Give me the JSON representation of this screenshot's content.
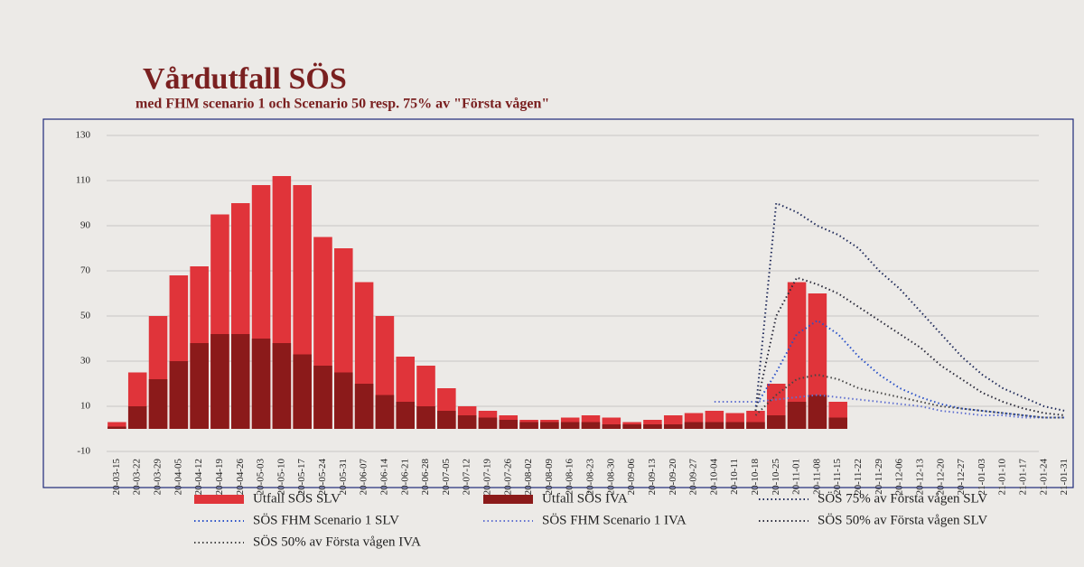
{
  "chart_data": {
    "type": "bar",
    "title": "Vårdutfall SÖS",
    "subtitle": "med FHM scenario 1 och Scenario 50 resp. 75% av \"Första vågen\"",
    "categories": [
      "20-03-15",
      "20-03-22",
      "20-03-29",
      "20-04-05",
      "20-04-12",
      "20-04-19",
      "20-04-26",
      "20-05-03",
      "20-05-10",
      "20-05-17",
      "20-05-24",
      "20-05-31",
      "20-06-07",
      "20-06-14",
      "20-06-21",
      "20-06-28",
      "20-07-05",
      "20-07-12",
      "20-07-19",
      "20-07-26",
      "20-08-02",
      "20-08-09",
      "20-08-16",
      "20-08-23",
      "20-08-30",
      "20-09-06",
      "20-09-13",
      "20-09-20",
      "20-09-27",
      "20-10-04",
      "20-10-11",
      "20-10-18",
      "20-10-25",
      "20-11-01",
      "20-11-08",
      "20-11-15",
      "20-11-22",
      "20-11-29",
      "20-12-06",
      "20-12-13",
      "20-12-20",
      "20-12-27",
      "21-01-03",
      "21-01-10",
      "21-01-17",
      "21-01-24",
      "21-01-31"
    ],
    "ylim": [
      -10,
      130
    ],
    "yticks": [
      -10,
      10,
      30,
      50,
      70,
      90,
      110,
      130
    ],
    "grid": true,
    "series": [
      {
        "name": "Utfall SÖS SLV",
        "kind": "bar",
        "color": "#e0343a",
        "values": [
          3,
          25,
          50,
          68,
          72,
          95,
          100,
          108,
          112,
          108,
          85,
          80,
          65,
          50,
          32,
          28,
          18,
          10,
          8,
          6,
          4,
          4,
          5,
          6,
          5,
          3,
          4,
          6,
          7,
          8,
          7,
          8,
          20,
          65,
          60,
          12,
          null,
          null,
          null,
          null,
          null,
          null,
          null,
          null,
          null,
          null,
          null
        ]
      },
      {
        "name": "Utfall SÖS IVA",
        "kind": "bar",
        "color": "#8b1a1a",
        "values": [
          1,
          10,
          22,
          30,
          38,
          42,
          42,
          40,
          38,
          33,
          28,
          25,
          20,
          15,
          12,
          10,
          8,
          6,
          5,
          4,
          3,
          3,
          3,
          3,
          2,
          2,
          2,
          2,
          3,
          3,
          3,
          3,
          6,
          12,
          15,
          5,
          null,
          null,
          null,
          null,
          null,
          null,
          null,
          null,
          null,
          null,
          null
        ]
      },
      {
        "name": "SÖS  75% av Första vågen SLV",
        "kind": "line",
        "color": "#1f2a5a",
        "values": [
          null,
          null,
          null,
          null,
          null,
          null,
          null,
          null,
          null,
          null,
          null,
          null,
          null,
          null,
          null,
          null,
          null,
          null,
          null,
          null,
          null,
          null,
          null,
          null,
          null,
          null,
          null,
          null,
          null,
          null,
          null,
          8,
          100,
          96,
          90,
          86,
          80,
          70,
          62,
          52,
          42,
          32,
          24,
          18,
          14,
          10,
          8
        ]
      },
      {
        "name": "SÖS FHM Scenario 1 SLV",
        "kind": "line",
        "color": "#2850c8",
        "values": [
          null,
          null,
          null,
          null,
          null,
          null,
          null,
          null,
          null,
          null,
          null,
          null,
          null,
          null,
          null,
          null,
          null,
          null,
          null,
          null,
          null,
          null,
          null,
          null,
          null,
          null,
          null,
          null,
          null,
          null,
          null,
          10,
          25,
          42,
          48,
          42,
          32,
          24,
          18,
          14,
          11,
          9,
          8,
          7,
          6,
          5,
          5
        ]
      },
      {
        "name": "SÖS FHM Scenario 1 IVA",
        "kind": "line",
        "color": "#6070d0",
        "values": [
          null,
          null,
          null,
          null,
          null,
          null,
          null,
          null,
          null,
          null,
          null,
          null,
          null,
          null,
          null,
          null,
          null,
          null,
          null,
          null,
          null,
          null,
          null,
          null,
          null,
          null,
          null,
          null,
          null,
          12,
          12,
          12,
          13,
          14,
          15,
          14,
          13,
          12,
          11,
          10,
          8,
          7,
          6,
          6,
          5,
          5,
          5
        ]
      },
      {
        "name": "SÖS 50% av Första vågen SLV",
        "kind": "line",
        "color": "#2a2a3a",
        "values": [
          null,
          null,
          null,
          null,
          null,
          null,
          null,
          null,
          null,
          null,
          null,
          null,
          null,
          null,
          null,
          null,
          null,
          null,
          null,
          null,
          null,
          null,
          null,
          null,
          null,
          null,
          null,
          null,
          null,
          null,
          null,
          8,
          50,
          67,
          64,
          60,
          54,
          48,
          42,
          36,
          28,
          22,
          16,
          12,
          9,
          7,
          6
        ]
      },
      {
        "name": "SÖS 50% av Första vågen IVA",
        "kind": "line",
        "color": "#444444",
        "values": [
          null,
          null,
          null,
          null,
          null,
          null,
          null,
          null,
          null,
          null,
          null,
          null,
          null,
          null,
          null,
          null,
          null,
          null,
          null,
          null,
          null,
          null,
          null,
          null,
          null,
          null,
          null,
          null,
          null,
          null,
          null,
          6,
          15,
          22,
          24,
          22,
          18,
          16,
          14,
          12,
          10,
          9,
          8,
          7,
          6,
          5,
          5
        ]
      }
    ]
  }
}
